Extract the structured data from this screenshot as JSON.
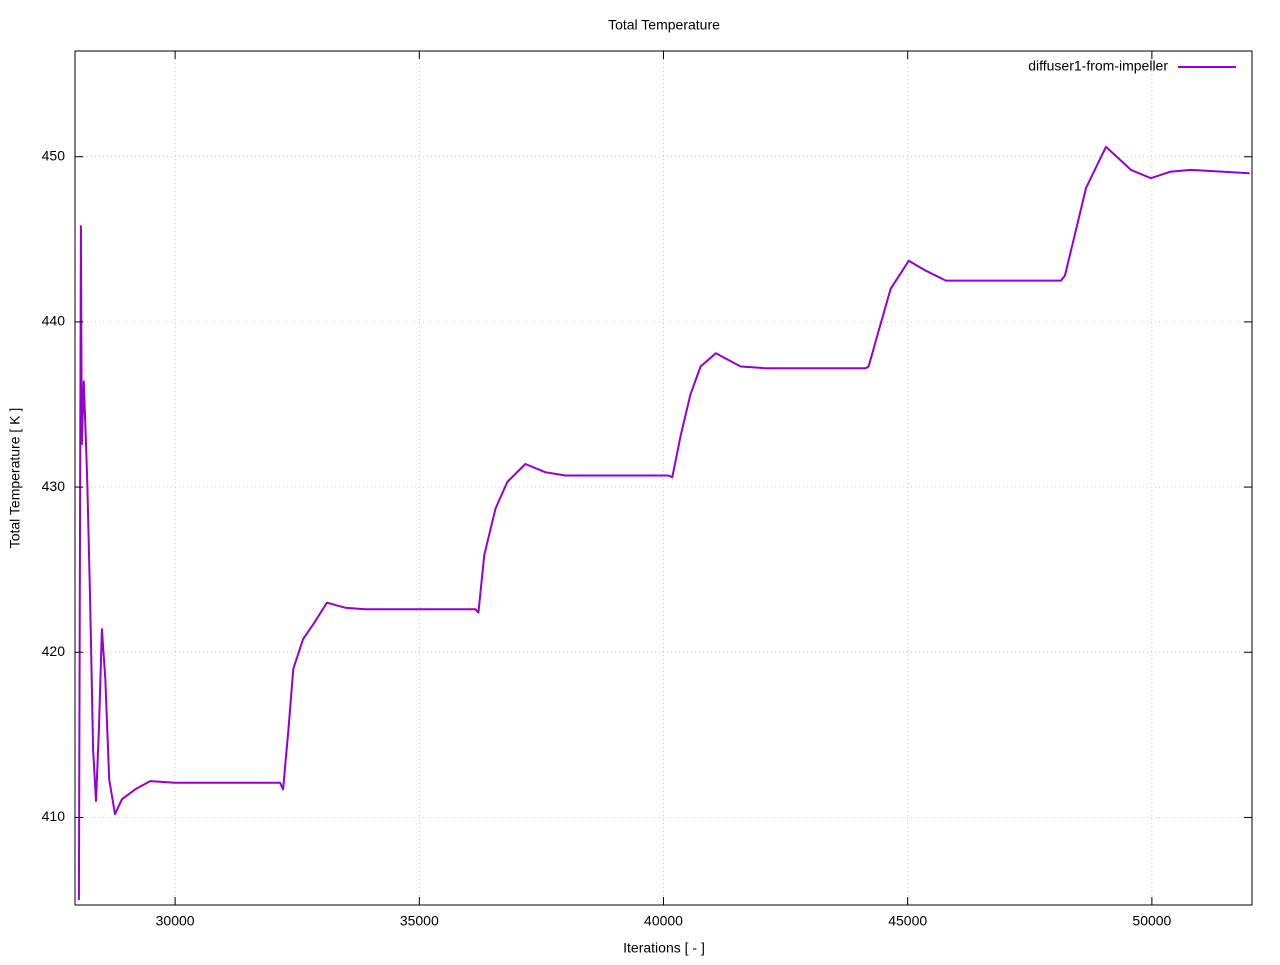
{
  "chart_data": {
    "type": "line",
    "title": "Total Temperature",
    "x_label": "Iterations [ - ]",
    "y_label": "Total Temperature [ K ]",
    "xlim": [
      27950,
      52050
    ],
    "ylim": [
      404.7,
      456.4
    ],
    "xticks": [
      30000,
      35000,
      40000,
      45000,
      50000
    ],
    "yticks": [
      410,
      420,
      430,
      440,
      450
    ],
    "grid": true,
    "legend": "top-right",
    "x": [
      28030,
      28070,
      28090,
      28130,
      28200,
      28260,
      28320,
      28380,
      28440,
      28500,
      28570,
      28650,
      28770,
      28910,
      29180,
      29490,
      30000,
      30510,
      32150,
      32210,
      32320,
      32420,
      32620,
      32830,
      33110,
      33480,
      33890,
      36150,
      36210,
      36330,
      36560,
      36800,
      37170,
      37580,
      37990,
      40100,
      40180,
      40350,
      40550,
      40760,
      41070,
      41580,
      42090,
      44140,
      44200,
      44390,
      44650,
      45020,
      45370,
      45780,
      46290,
      48140,
      48220,
      48400,
      48650,
      49060,
      49570,
      49980,
      50390,
      50800,
      52000
    ],
    "series": [
      {
        "name": "diffuser1-from-impeller",
        "color": "#9400d3",
        "values": [
          405,
          445.8,
          432.6,
          436.4,
          430.5,
          423.2,
          414.1,
          411.0,
          415.3,
          421.4,
          418.4,
          412.3,
          410.2,
          411.1,
          411.7,
          412.2,
          412.1,
          412.1,
          412.1,
          411.7,
          415.3,
          419.0,
          420.8,
          421.7,
          423.0,
          422.7,
          422.6,
          422.6,
          422.4,
          425.9,
          428.7,
          430.3,
          431.4,
          430.9,
          430.7,
          430.7,
          430.6,
          433.1,
          435.6,
          437.3,
          438.1,
          437.3,
          437.2,
          437.2,
          437.3,
          439.3,
          442.0,
          443.7,
          443.1,
          442.5,
          442.5,
          442.5,
          442.8,
          445.0,
          448.1,
          450.6,
          449.2,
          448.7,
          449.1,
          449.2,
          449.0
        ]
      }
    ]
  }
}
